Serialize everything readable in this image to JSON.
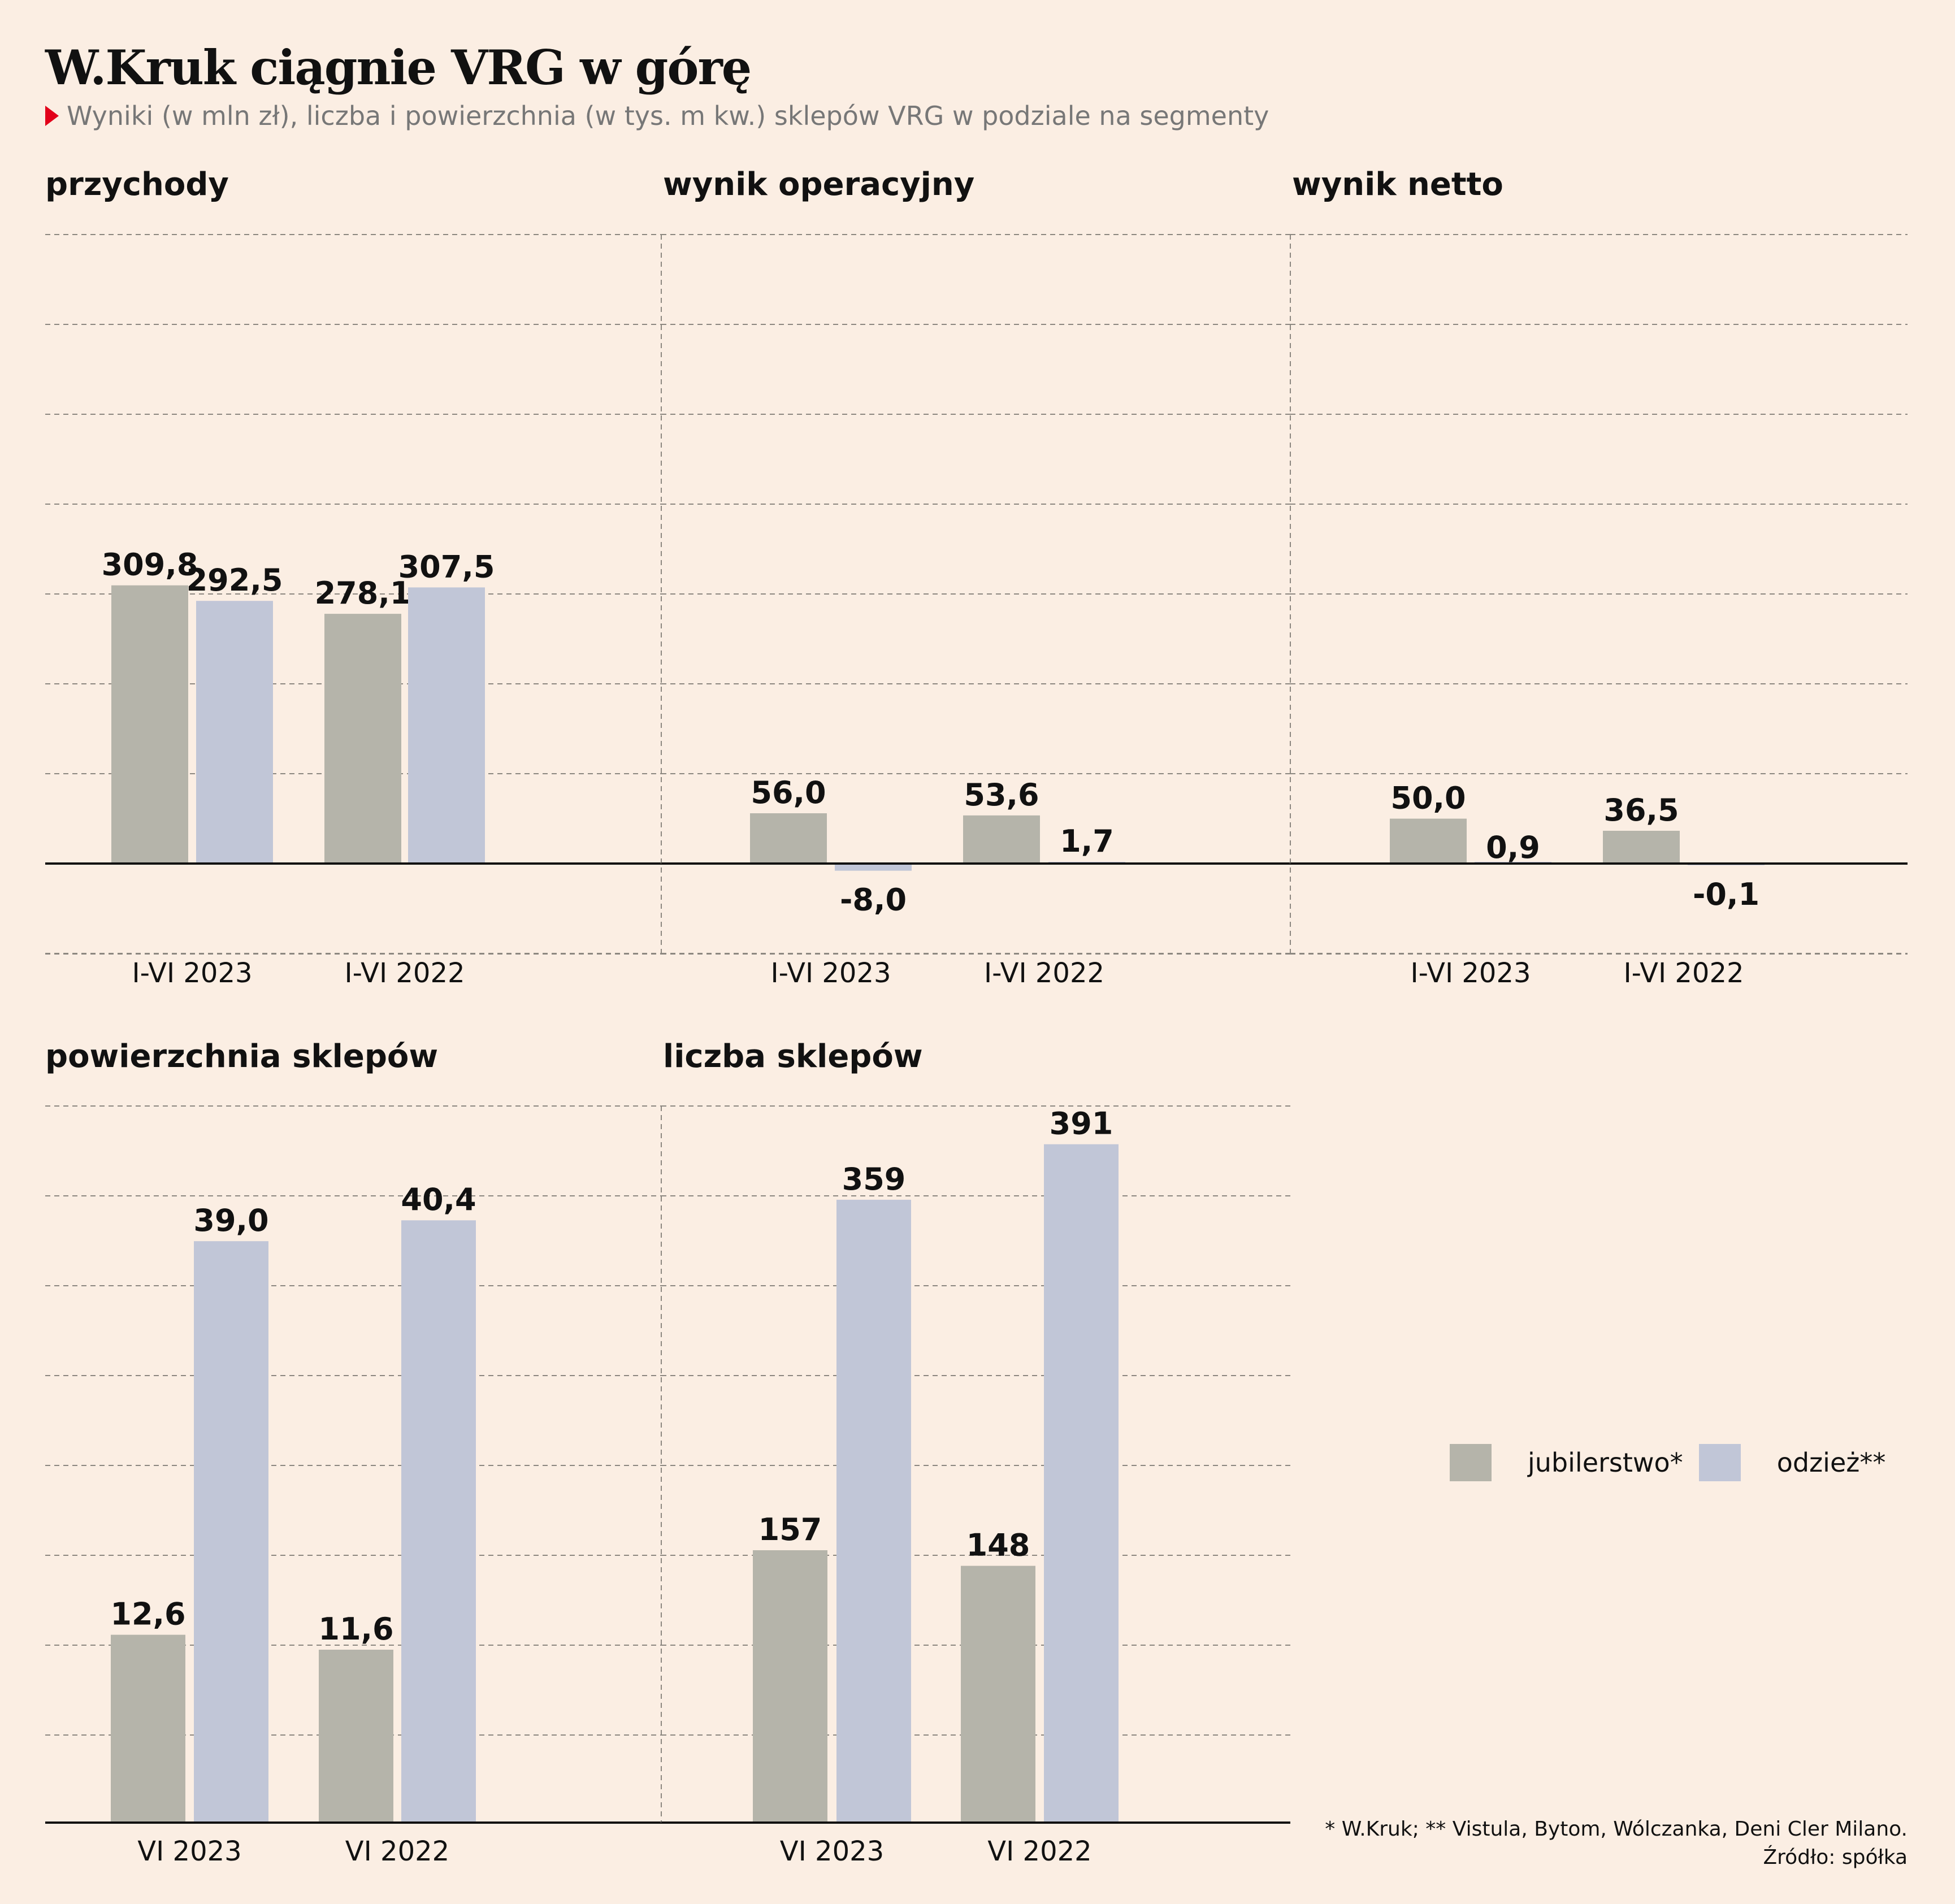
{
  "title": "W.Kruk ciągnie VRG w górę",
  "subtitle": "Wyniki (w mln zł), liczba i powierzchnia (w tys. m kw.) sklepów VRG w podziale na segmenty",
  "colors": {
    "jubilerstwo": "#b5b4aa",
    "odziez": "#c1c6d7",
    "background": "#fbeee3",
    "accent": "#e2001a"
  },
  "legend": {
    "jubilerstwo": "jubilerstwo*",
    "odziez": "odzież**"
  },
  "notes": {
    "footnote": "* W.Kruk; ** Vistula, Bytom, Wólczanka, Deni Cler Milano.",
    "source": "Źródło: spółka"
  },
  "chart_data": [
    {
      "type": "bar",
      "title": "przychody",
      "categories": [
        "I-VI 2023",
        "I-VI 2022"
      ],
      "series": [
        {
          "name": "jubilerstwo*",
          "values": [
            309.8,
            278.1
          ],
          "labels": [
            "309,8",
            "278,1"
          ]
        },
        {
          "name": "odzież**",
          "values": [
            292.5,
            307.5
          ],
          "labels": [
            "292,5",
            "307,5"
          ]
        }
      ],
      "ylim": [
        -50,
        350
      ],
      "grid": true
    },
    {
      "type": "bar",
      "title": "wynik operacyjny",
      "categories": [
        "I-VI 2023",
        "I-VI 2022"
      ],
      "series": [
        {
          "name": "jubilerstwo*",
          "values": [
            56.0,
            53.6
          ],
          "labels": [
            "56,0",
            "53,6"
          ]
        },
        {
          "name": "odzież**",
          "values": [
            -8.0,
            1.7
          ],
          "labels": [
            "-8,0",
            "1,7"
          ]
        }
      ],
      "ylim": [
        -50,
        350
      ],
      "grid": true
    },
    {
      "type": "bar",
      "title": "wynik netto",
      "categories": [
        "I-VI 2023",
        "I-VI 2022"
      ],
      "series": [
        {
          "name": "jubilerstwo*",
          "values": [
            50.0,
            36.5
          ],
          "labels": [
            "50,0",
            "36,5"
          ]
        },
        {
          "name": "odzież**",
          "values": [
            0.9,
            -0.1
          ],
          "labels": [
            "0,9",
            "-0,1"
          ]
        }
      ],
      "ylim": [
        -50,
        350
      ],
      "grid": true
    },
    {
      "type": "bar",
      "title": "powierzchnia sklepów",
      "categories": [
        "VI 2023",
        "VI 2022"
      ],
      "series": [
        {
          "name": "jubilerstwo*",
          "values": [
            12.6,
            11.6
          ],
          "labels": [
            "12,6",
            "11,6"
          ]
        },
        {
          "name": "odzież**",
          "values": [
            39.0,
            40.4
          ],
          "labels": [
            "39,0",
            "40,4"
          ]
        }
      ],
      "ylim": [
        0,
        48
      ],
      "grid": true
    },
    {
      "type": "bar",
      "title": "liczba sklepów",
      "categories": [
        "VI 2023",
        "VI 2022"
      ],
      "series": [
        {
          "name": "jubilerstwo*",
          "values": [
            157,
            148
          ],
          "labels": [
            "157",
            "148"
          ]
        },
        {
          "name": "odzież**",
          "values": [
            359,
            391
          ],
          "labels": [
            "359",
            "391"
          ]
        }
      ],
      "ylim": [
        0,
        400
      ],
      "grid": true
    }
  ]
}
